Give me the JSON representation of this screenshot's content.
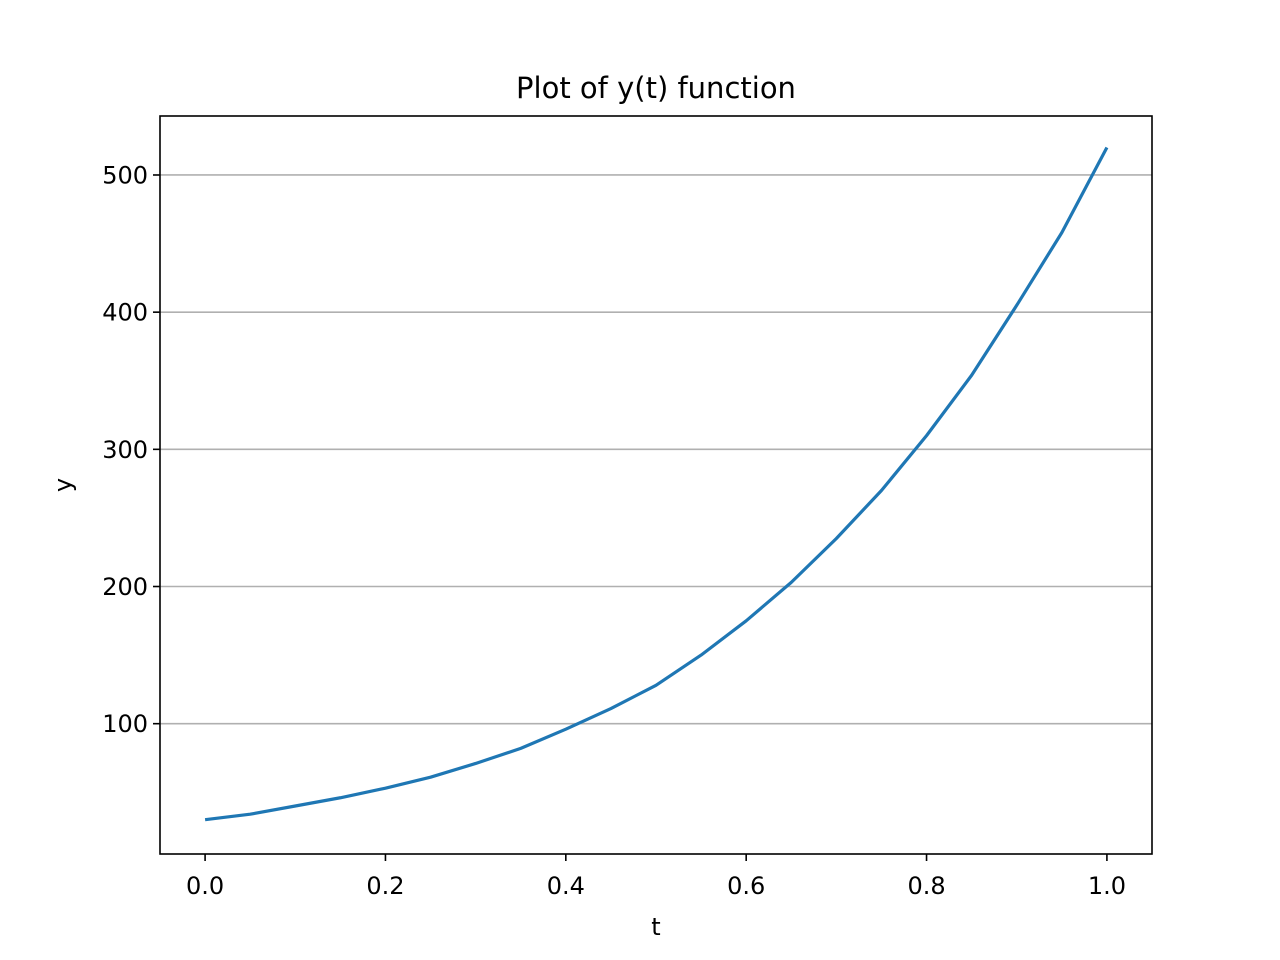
{
  "chart_data": {
    "type": "line",
    "title": "Plot of y(t) function",
    "xlabel": "t",
    "ylabel": "y",
    "xlim": [
      -0.05,
      1.05
    ],
    "ylim": [
      5,
      543
    ],
    "x_ticks": [
      0.0,
      0.2,
      0.4,
      0.6,
      0.8,
      1.0
    ],
    "x_tick_labels": [
      "0.0",
      "0.2",
      "0.4",
      "0.6",
      "0.8",
      "1.0"
    ],
    "y_ticks": [
      100,
      200,
      300,
      400,
      500
    ],
    "y_tick_labels": [
      "100",
      "200",
      "300",
      "400",
      "500"
    ],
    "grid": "y-major",
    "legend": "none",
    "series": [
      {
        "color": "#1f77b4",
        "x": [
          0.0,
          0.05,
          0.1,
          0.15,
          0.2,
          0.25,
          0.3,
          0.35,
          0.4,
          0.45,
          0.5,
          0.55,
          0.6,
          0.65,
          0.7,
          0.75,
          0.8,
          0.85,
          0.9,
          0.95,
          1.0
        ],
        "y": [
          30,
          34,
          40,
          46,
          53,
          61,
          71,
          82,
          96,
          111,
          128,
          150,
          175,
          203,
          235,
          270,
          310,
          354,
          405,
          458,
          520
        ]
      }
    ]
  },
  "colors": {
    "line": "#1f77b4",
    "grid": "#b0b0b0",
    "axes": "#000000",
    "background": "#ffffff"
  }
}
